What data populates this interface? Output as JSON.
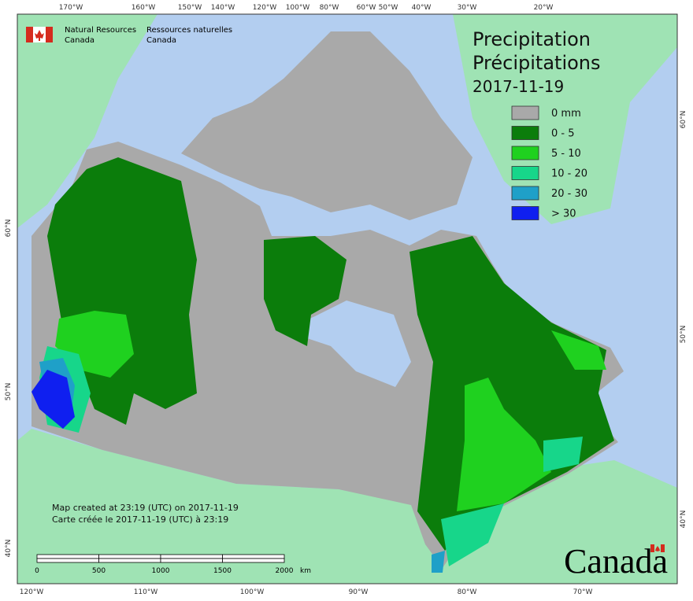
{
  "header": {
    "org_en": "Natural Resources",
    "org_en_2": "Canada",
    "org_fr": "Ressources naturelles",
    "org_fr_2": "Canada"
  },
  "title": {
    "line1": "Precipitation",
    "line2": "Précipitations",
    "date": "2017-11-19"
  },
  "legend": [
    {
      "label": "0 mm",
      "color": "#a9a9a9"
    },
    {
      "label": "0 - 5",
      "color": "#0b7d0b"
    },
    {
      "label": "5 - 10",
      "color": "#1fd11f"
    },
    {
      "label": "10 - 20",
      "color": "#17d68a"
    },
    {
      "label": "20 - 30",
      "color": "#1fa0c8"
    },
    {
      "label": "> 30",
      "color": "#0f1ff0"
    }
  ],
  "credits": [
    "Map created at 23:19 (UTC) on 2017-11-19",
    "Carte créée le 2017-11-19 (UTC) à 23:19"
  ],
  "scale_bar": {
    "labels": [
      "0",
      "500",
      "1000",
      "1500",
      "2000"
    ],
    "unit": "km"
  },
  "graticule": {
    "top": [
      "170°W",
      "160°W",
      "150°W",
      "140°W",
      "120°W",
      "100°W",
      "80°W",
      "60°W",
      "50°W",
      "40°W",
      "30°W",
      "20°W"
    ],
    "bottom": [
      "120°W",
      "110°W",
      "100°W",
      "90°W",
      "80°W",
      "70°W"
    ],
    "left": [
      "60°N",
      "50°N",
      "40°N"
    ],
    "right": [
      "60°N",
      "50°N",
      "40°N"
    ]
  },
  "wordmark": "Canada"
}
